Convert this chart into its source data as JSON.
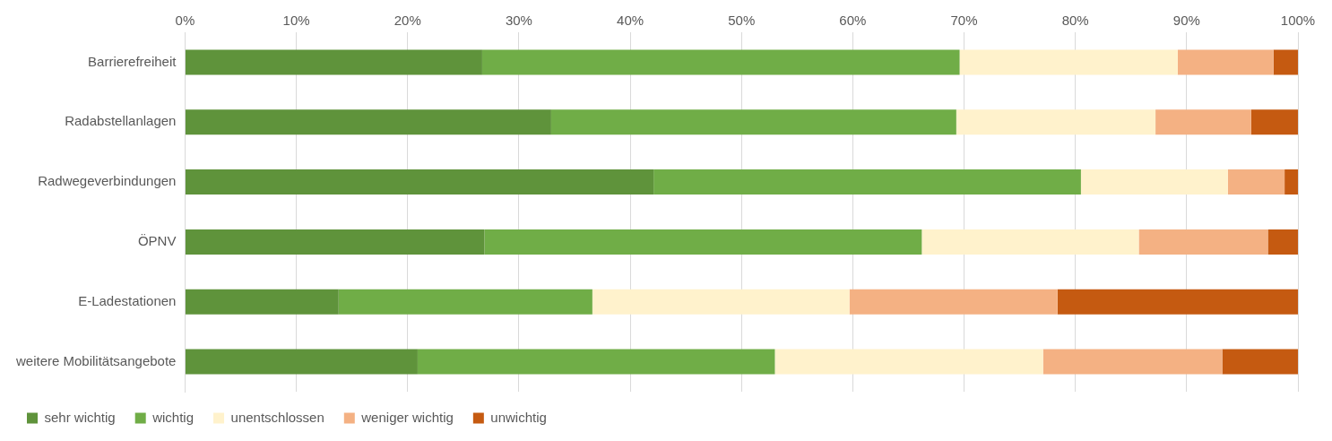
{
  "chart_data": {
    "type": "bar",
    "orientation": "horizontal",
    "stacked": true,
    "categories": [
      "Barrierefreiheit",
      "Radabstellanlagen",
      "Radwegeverbindungen",
      "ÖPNV",
      "E-Ladestationen",
      "weitere Mobilitätsangebote"
    ],
    "series": [
      {
        "name": "sehr wichtig",
        "color": "#5f933b",
        "values": [
          26.7,
          32.9,
          42.1,
          26.9,
          13.8,
          20.9
        ]
      },
      {
        "name": "wichtig",
        "color": "#70ad47",
        "values": [
          42.9,
          36.4,
          38.4,
          39.3,
          22.8,
          32.1
        ]
      },
      {
        "name": "unentschlossen",
        "color": "#fff2cc",
        "values": [
          19.6,
          17.9,
          13.2,
          19.5,
          23.1,
          24.1
        ]
      },
      {
        "name": "weniger wichtig",
        "color": "#f4b183",
        "values": [
          8.6,
          8.6,
          5.1,
          11.6,
          18.7,
          16.1
        ]
      },
      {
        "name": "unwichtig",
        "color": "#c55a11",
        "values": [
          2.2,
          4.2,
          1.2,
          2.7,
          21.6,
          6.8
        ]
      }
    ],
    "xlim": [
      0,
      100
    ],
    "xticks": [
      {
        "value": 0,
        "label": "0%"
      },
      {
        "value": 10,
        "label": "10%"
      },
      {
        "value": 20,
        "label": "20%"
      },
      {
        "value": 30,
        "label": "30%"
      },
      {
        "value": 40,
        "label": "40%"
      },
      {
        "value": 50,
        "label": "50%"
      },
      {
        "value": 60,
        "label": "60%"
      },
      {
        "value": 70,
        "label": "70%"
      },
      {
        "value": 80,
        "label": "80%"
      },
      {
        "value": 90,
        "label": "90%"
      },
      {
        "value": 100,
        "label": "100%"
      }
    ],
    "grid": "x",
    "legend": "bottom"
  }
}
